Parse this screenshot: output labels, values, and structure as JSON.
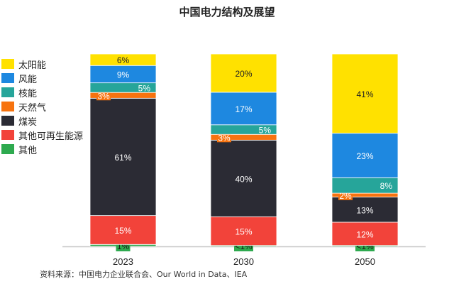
{
  "chart_data": {
    "type": "bar",
    "stacked": true,
    "title": "中国电力结构及展望",
    "categories": [
      "2023",
      "2030",
      "2050"
    ],
    "series": [
      {
        "name": "其他",
        "color": "#2eaa4f",
        "values": [
          1,
          0.5,
          0.5
        ],
        "labels": [
          "1%",
          "<1%",
          "<1%"
        ]
      },
      {
        "name": "其他可再生能源",
        "color": "#f2433a",
        "values": [
          15,
          15,
          12
        ],
        "labels": [
          "15%",
          "15%",
          "12%"
        ]
      },
      {
        "name": "煤炭",
        "color": "#2b2b34",
        "values": [
          61,
          40,
          13
        ],
        "labels": [
          "61%",
          "40%",
          "13%"
        ]
      },
      {
        "name": "天然气",
        "color": "#f7730f",
        "values": [
          3,
          3,
          2
        ],
        "labels": [
          "3%",
          "3%",
          "2%"
        ]
      },
      {
        "name": "核能",
        "color": "#26a59a",
        "values": [
          5,
          5,
          8
        ],
        "labels": [
          "5%",
          "5%",
          "8%"
        ]
      },
      {
        "name": "风能",
        "color": "#1e88e0",
        "values": [
          9,
          17,
          23
        ],
        "labels": [
          "9%",
          "17%",
          "23%"
        ]
      },
      {
        "name": "太阳能",
        "color": "#ffe100",
        "values": [
          6,
          20,
          41
        ],
        "labels": [
          "6%",
          "20%",
          "41%"
        ]
      }
    ],
    "legend_order": [
      "太阳能",
      "风能",
      "核能",
      "天然气",
      "煤炭",
      "其他可再生能源",
      "其他"
    ],
    "legend_position": "left",
    "grid": false,
    "source": "资料来源：中国电力企业联合会、Our World in Data、IEA"
  }
}
